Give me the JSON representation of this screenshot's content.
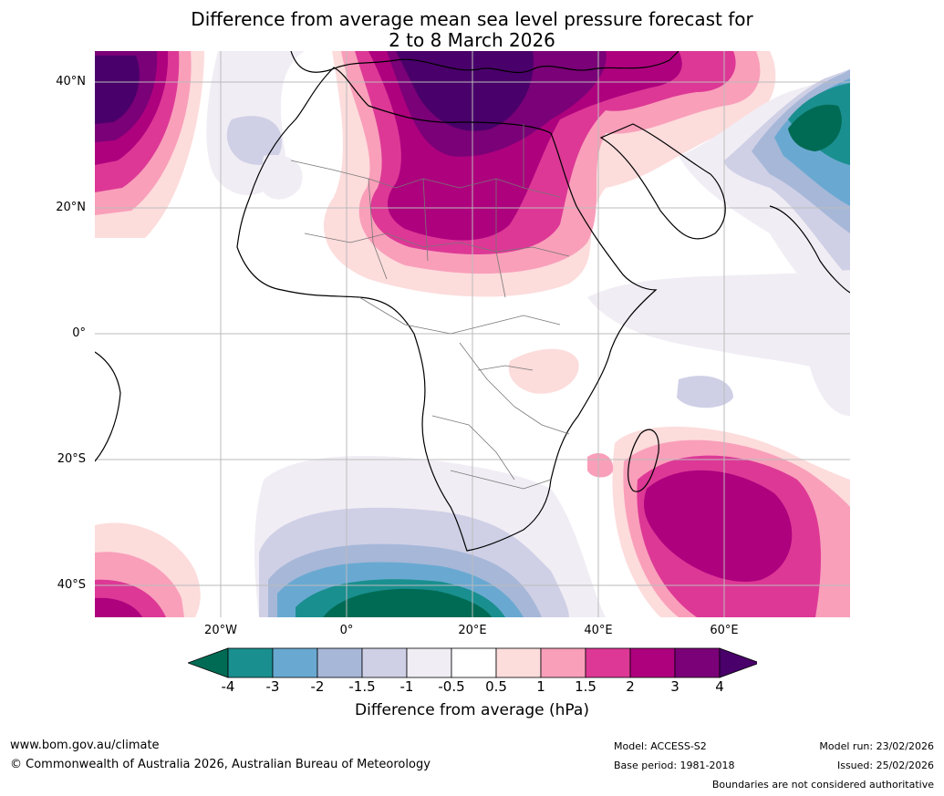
{
  "title_line1": "Difference from average mean sea level pressure forecast for",
  "title_line2": "2 to 8 March 2026",
  "lat_labels": [
    "40°N",
    "20°N",
    "0°",
    "20°S",
    "40°S"
  ],
  "lon_labels": [
    "20°W",
    "0°",
    "20°E",
    "40°E",
    "60°E"
  ],
  "colorbar": {
    "ticks": [
      "-4",
      "-3",
      "-2",
      "-1.5",
      "-1",
      "-0.5",
      "0.5",
      "1",
      "1.5",
      "2",
      "3",
      "4"
    ],
    "colors": [
      "#006b54",
      "#1a8f8f",
      "#69a9d1",
      "#a7b7d8",
      "#cfd0e6",
      "#f1edf4",
      "#ffffff",
      "#fddcdc",
      "#f99fba",
      "#dd3896",
      "#ae017e",
      "#7a0177",
      "#49006a"
    ],
    "label": "Difference from average (hPa)"
  },
  "footer": {
    "website": "www.bom.gov.au/climate",
    "copyright": "© Commonwealth of Australia 2026, Australian Bureau of Meteorology",
    "model": "Model: ACCESS-S2",
    "base_period": "Base period: 1981-2018",
    "model_run": "Model run: 23/02/2026",
    "issued": "Issued: 25/02/2026",
    "disclaimer": "Boundaries are not considered authoritative"
  }
}
